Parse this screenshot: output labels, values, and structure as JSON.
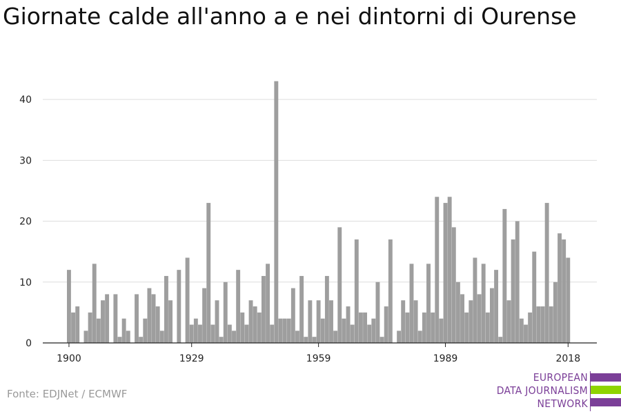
{
  "title": "Giornate calde all'anno a e nei dintorni di Ourense",
  "source": "Fonte: EDJNet / ECMWF",
  "logo": {
    "lines": [
      "EUROPEAN",
      "DATA JOURNALISM",
      "NETWORK"
    ],
    "colors": [
      "#7b3f98",
      "#8fd400",
      "#7b3f98"
    ]
  },
  "colors": {
    "bar": "#9e9e9e",
    "grid": "#dddddd",
    "axis": "#222222",
    "text": "#222222"
  },
  "chart_data": {
    "type": "bar",
    "title": "Giornate calde all'anno a e nei dintorni di Ourense",
    "xlabel": "",
    "ylabel": "",
    "ylim": [
      0,
      45
    ],
    "grid": true,
    "y_ticks": [
      0,
      10,
      20,
      30,
      40
    ],
    "x_ticks": [
      1900,
      1929,
      1959,
      1989,
      2018
    ],
    "x": [
      1900,
      1901,
      1902,
      1903,
      1904,
      1905,
      1906,
      1907,
      1908,
      1909,
      1910,
      1911,
      1912,
      1913,
      1914,
      1915,
      1916,
      1917,
      1918,
      1919,
      1920,
      1921,
      1922,
      1923,
      1924,
      1925,
      1926,
      1927,
      1928,
      1929,
      1930,
      1931,
      1932,
      1933,
      1934,
      1935,
      1936,
      1937,
      1938,
      1939,
      1940,
      1941,
      1942,
      1943,
      1944,
      1945,
      1946,
      1947,
      1948,
      1949,
      1950,
      1951,
      1952,
      1953,
      1954,
      1955,
      1956,
      1957,
      1958,
      1959,
      1960,
      1961,
      1962,
      1963,
      1964,
      1965,
      1966,
      1967,
      1968,
      1969,
      1970,
      1971,
      1972,
      1973,
      1974,
      1975,
      1976,
      1977,
      1978,
      1979,
      1980,
      1981,
      1982,
      1983,
      1984,
      1985,
      1986,
      1987,
      1988,
      1989,
      1990,
      1991,
      1992,
      1993,
      1994,
      1995,
      1996,
      1997,
      1998,
      1999,
      2000,
      2001,
      2002,
      2003,
      2004,
      2005,
      2006,
      2007,
      2008,
      2009,
      2010,
      2011,
      2012,
      2013,
      2014,
      2015,
      2016,
      2017,
      2018
    ],
    "values": [
      12,
      5,
      6,
      0,
      2,
      5,
      13,
      4,
      7,
      8,
      0,
      8,
      1,
      4,
      2,
      0,
      8,
      1,
      4,
      9,
      8,
      6,
      2,
      11,
      7,
      0,
      12,
      0,
      14,
      3,
      4,
      3,
      9,
      23,
      3,
      7,
      1,
      10,
      3,
      2,
      12,
      5,
      3,
      7,
      6,
      5,
      11,
      13,
      3,
      43,
      4,
      4,
      4,
      9,
      2,
      11,
      1,
      7,
      1,
      7,
      4,
      11,
      7,
      2,
      19,
      4,
      6,
      3,
      17,
      5,
      5,
      3,
      4,
      10,
      1,
      6,
      17,
      0,
      2,
      7,
      5,
      13,
      7,
      2,
      5,
      13,
      5,
      24,
      4,
      23,
      24,
      19,
      10,
      8,
      5,
      7,
      14,
      8,
      13,
      5,
      9,
      12,
      1,
      22,
      7,
      17,
      20,
      4,
      3,
      5,
      15,
      6,
      6,
      23,
      6,
      10,
      18,
      17,
      14
    ]
  }
}
